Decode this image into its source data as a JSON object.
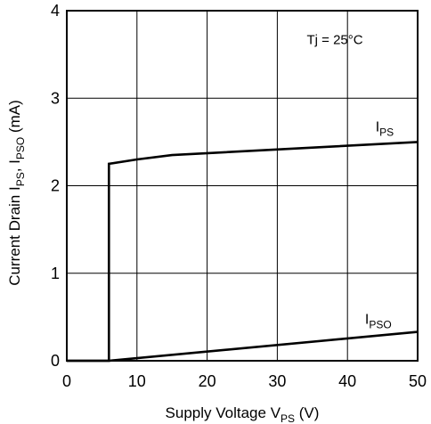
{
  "chart_data": {
    "type": "line",
    "xlabel": {
      "text": "Supply Voltage V",
      "sub": "PS",
      "suffix": " (V)"
    },
    "ylabel": {
      "text": "Current Drain I",
      "sub1": "PS",
      "mid": ", I",
      "sub2": "PSO",
      "suffix": " (mA)"
    },
    "xlim": [
      0,
      50
    ],
    "ylim": [
      0,
      4
    ],
    "xticks": [
      0,
      10,
      20,
      30,
      40,
      50
    ],
    "yticks": [
      0,
      1,
      2,
      3,
      4
    ],
    "grid": true,
    "annotation": "Tj = 25°C",
    "series": [
      {
        "label_main": "I",
        "label_sub": "PS",
        "label_at": {
          "x": 44,
          "y": 2.62
        },
        "x": [
          0,
          6,
          6,
          10,
          15,
          50
        ],
        "y": [
          0,
          0,
          2.25,
          2.3,
          2.35,
          2.5
        ]
      },
      {
        "label_main": "I",
        "label_sub": "PSO",
        "label_at": {
          "x": 42.5,
          "y": 0.42
        },
        "x": [
          0,
          6,
          50
        ],
        "y": [
          0,
          0,
          0.33
        ]
      }
    ],
    "colors": {
      "line": "#000000",
      "grid": "#000000"
    }
  }
}
